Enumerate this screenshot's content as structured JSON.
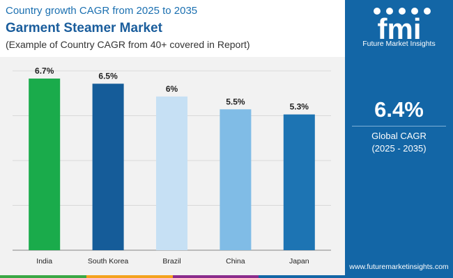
{
  "header": {
    "subtitle": "Country growth CAGR from 2025 to 2035",
    "title": "Garment Steamer Market",
    "note": "(Example of Country CAGR from 40+ covered in Report)"
  },
  "sidebar": {
    "brand_name": "Future Market Insights",
    "logo_text": "fmi",
    "global_value": "6.4%",
    "global_label": "Global CAGR",
    "global_period": "(2025 - 2035)",
    "website": "www.futuremarketinsights.com"
  },
  "colors": {
    "sidebar_bg": "#1366a6",
    "chart_bg": "#f2f2f2",
    "strip": [
      "#3aa845",
      "#f4a21d",
      "#8b2c8c",
      "#1366a6"
    ]
  },
  "chart_data": {
    "type": "bar",
    "title": "Garment Steamer Market",
    "categories": [
      "India",
      "South Korea",
      "Brazil",
      "China",
      "Japan"
    ],
    "values": [
      6.7,
      6.5,
      6.0,
      5.5,
      5.3
    ],
    "value_labels": [
      "6.7%",
      "6.5%",
      "6%",
      "5.5%",
      "5.3%"
    ],
    "bar_colors": [
      "#1aab4b",
      "#155c99",
      "#c6e0f4",
      "#80bce6",
      "#1d74b3"
    ],
    "ylim": [
      0,
      7
    ],
    "yticks": [
      0,
      1.75,
      3.5,
      5.25,
      7
    ],
    "grid": true,
    "xlabel": "",
    "ylabel": ""
  }
}
